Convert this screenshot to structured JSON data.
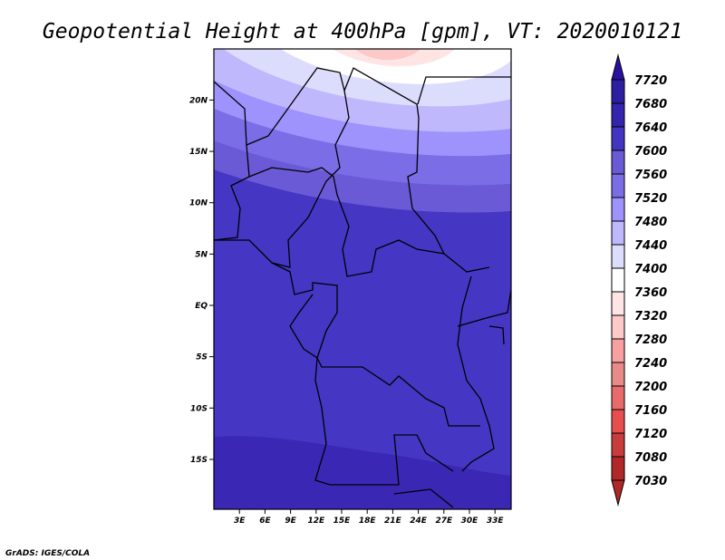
{
  "title": "Geopotential Height at 400hPa [gpm], VT: 2020010121",
  "credit": "GrADS: IGES/COLA",
  "lat_labels": [
    "20N",
    "15N",
    "10N",
    "5N",
    "EQ",
    "5S",
    "10S",
    "15S"
  ],
  "lat_values": [
    20,
    15,
    10,
    5,
    0,
    -5,
    -10,
    -15
  ],
  "lon_labels": [
    "3E",
    "6E",
    "9E",
    "12E",
    "15E",
    "18E",
    "21E",
    "24E",
    "27E",
    "30E",
    "33E"
  ],
  "lon_values": [
    3,
    6,
    9,
    12,
    15,
    18,
    21,
    24,
    27,
    30,
    33
  ],
  "colorbar": {
    "labels": [
      "7720",
      "7680",
      "7640",
      "7600",
      "7560",
      "7520",
      "7480",
      "7440",
      "7400",
      "7360",
      "7320",
      "7280",
      "7240",
      "7200",
      "7160",
      "7120",
      "7080",
      "7030"
    ],
    "top_arrow_color": "#2a10a0",
    "bottom_arrow_color": "#b02828",
    "colors": [
      "#2e1ea2",
      "#3524ae",
      "#4434c2",
      "#6a5ad6",
      "#7b6de6",
      "#9e92fc",
      "#c0b8fc",
      "#dcdcfc",
      "#ffffff",
      "#ffe4e4",
      "#fcc8c8",
      "#f8a0a0",
      "#e88a8a",
      "#e86a6a",
      "#e84e4e",
      "#c83c3c",
      "#b02828"
    ]
  },
  "map_colors": {
    "base": "#4536c4",
    "south": "#3a28b4",
    "bands": [
      "#6a5ad6",
      "#7b6de6",
      "#9e92fc",
      "#c0b8fc",
      "#dcdcfc",
      "#ffffff",
      "#ffe4e4",
      "#fcc8c8"
    ]
  }
}
